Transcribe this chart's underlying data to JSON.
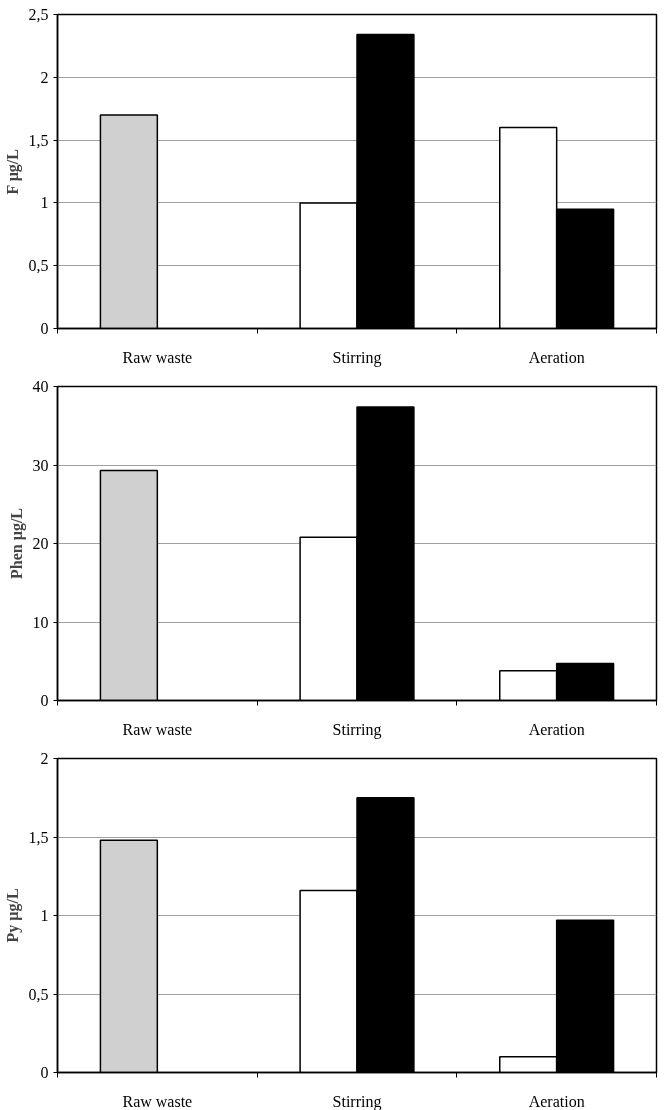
{
  "chart_data": [
    {
      "type": "bar",
      "ylabel": "F µg/L",
      "categories": [
        "Raw waste",
        "Stirring",
        "Aeration"
      ],
      "series": [
        {
          "color": "#d0d0d0",
          "values": [
            1.7,
            null,
            null
          ]
        },
        {
          "color": "#ffffff",
          "values": [
            null,
            1.0,
            1.6
          ]
        },
        {
          "color": "#000000",
          "values": [
            null,
            2.34,
            0.95
          ]
        }
      ],
      "ylim": [
        0,
        2.5
      ],
      "yticks": [
        0,
        {
          "value": 0.5,
          "label": "0,5"
        },
        1,
        {
          "value": 1.5,
          "label": "1,5"
        },
        2,
        {
          "value": 2.5,
          "label": "2,5"
        }
      ],
      "grid": "y"
    },
    {
      "type": "bar",
      "ylabel": "Phen µg/L",
      "categories": [
        "Raw waste",
        "Stirring",
        "Aeration"
      ],
      "series": [
        {
          "color": "#d0d0d0",
          "values": [
            29.3,
            null,
            null
          ]
        },
        {
          "color": "#ffffff",
          "values": [
            null,
            20.8,
            3.8
          ]
        },
        {
          "color": "#000000",
          "values": [
            null,
            37.4,
            4.7
          ]
        }
      ],
      "ylim": [
        0,
        40
      ],
      "yticks": [
        0,
        10,
        20,
        30,
        40
      ],
      "grid": "y"
    },
    {
      "type": "bar",
      "ylabel": "Py µg/L",
      "categories": [
        "Raw waste",
        "Stirring",
        "Aeration"
      ],
      "series": [
        {
          "color": "#d0d0d0",
          "values": [
            1.48,
            null,
            null
          ]
        },
        {
          "color": "#ffffff",
          "values": [
            null,
            1.16,
            0.1
          ]
        },
        {
          "color": "#000000",
          "values": [
            null,
            1.75,
            0.97
          ]
        }
      ],
      "ylim": [
        0,
        2
      ],
      "yticks": [
        0,
        {
          "value": 0.5,
          "label": "0,5"
        },
        1,
        {
          "value": 1.5,
          "label": "1,5"
        },
        2
      ],
      "grid": "y"
    }
  ]
}
